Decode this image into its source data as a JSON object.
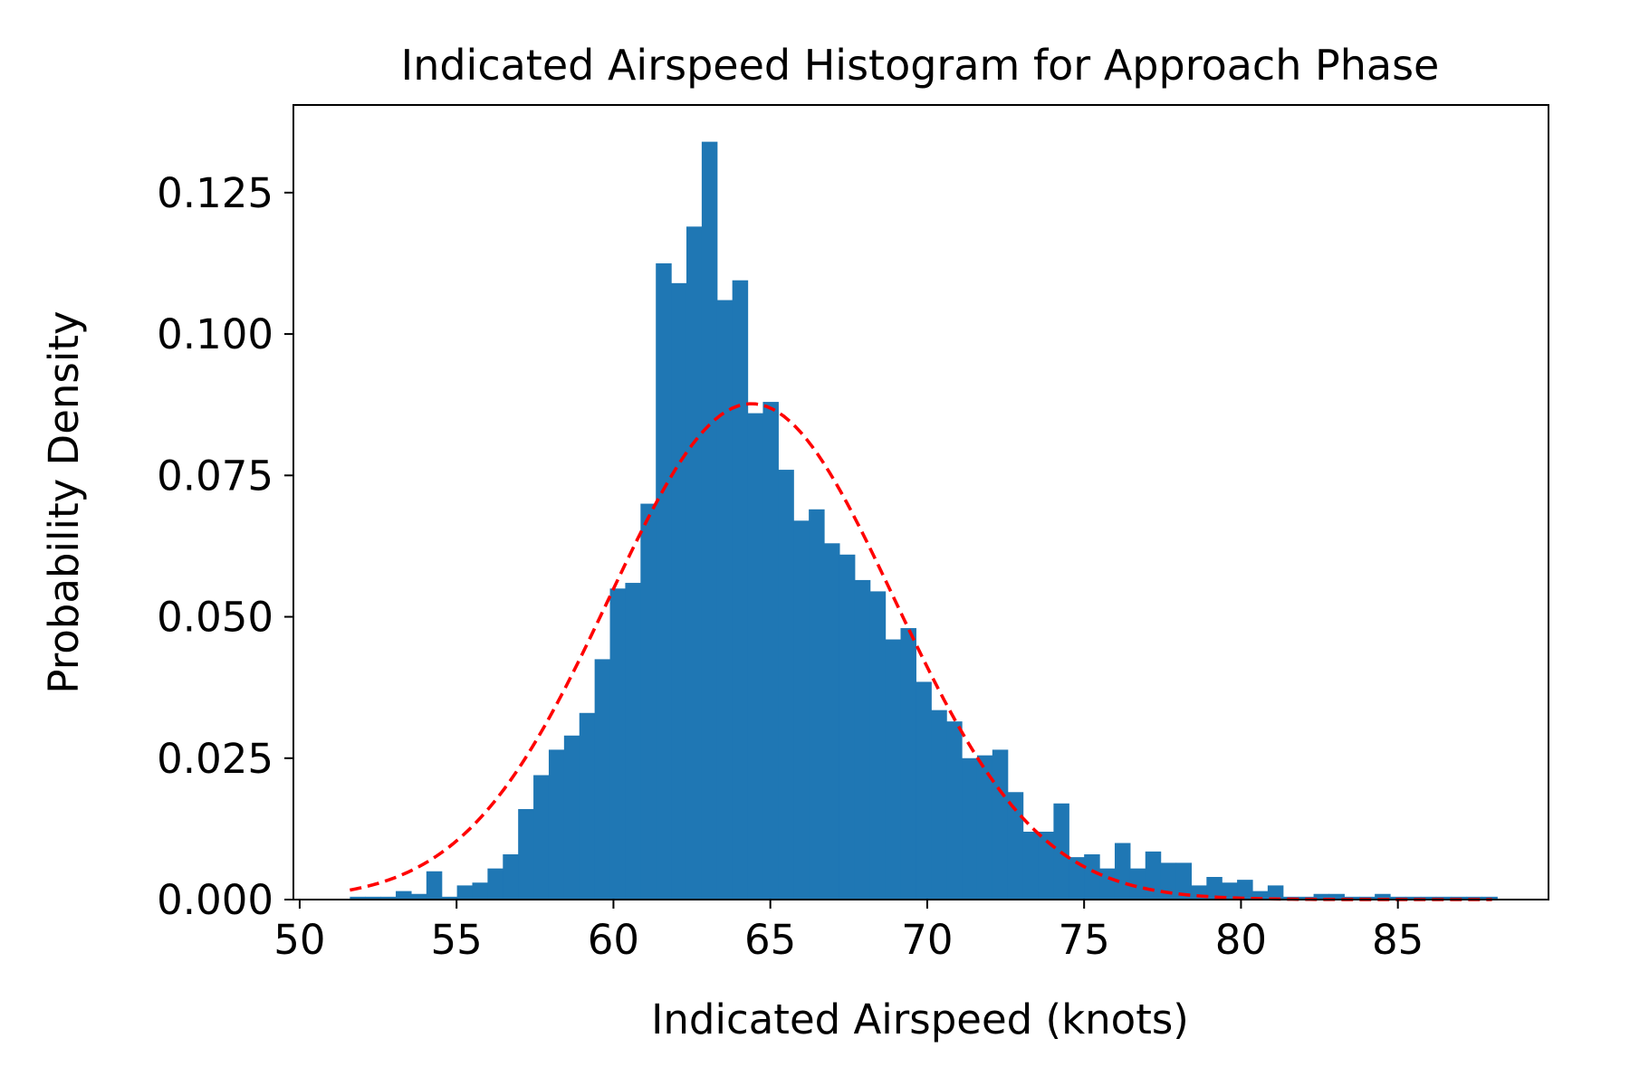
{
  "chart_data": {
    "type": "bar",
    "title": "Indicated Airspeed Histogram for Approach Phase",
    "xlabel": "Indicated Airspeed (knots)",
    "ylabel": "Probability Density",
    "xlim": [
      49.8,
      89.8
    ],
    "ylim": [
      0,
      0.1405
    ],
    "xticks": [
      50,
      55,
      60,
      65,
      70,
      75,
      80,
      85
    ],
    "yticks": [
      0,
      0.025,
      0.05,
      0.075,
      0.1,
      0.125
    ],
    "ytick_labels": [
      "0.000",
      "0.025",
      "0.050",
      "0.075",
      "0.100",
      "0.125"
    ],
    "bar_color": "#1f77b4",
    "fit_color": "#ff0000",
    "grid": false,
    "bins": {
      "start": 51.6,
      "width": 0.4875,
      "densities": [
        0.0005,
        0.0005,
        0.0005,
        0.0015,
        0.001,
        0.005,
        0.0005,
        0.0025,
        0.003,
        0.0055,
        0.008,
        0.016,
        0.022,
        0.0265,
        0.029,
        0.033,
        0.0425,
        0.055,
        0.056,
        0.07,
        0.1125,
        0.109,
        0.119,
        0.134,
        0.106,
        0.1095,
        0.086,
        0.088,
        0.076,
        0.067,
        0.069,
        0.063,
        0.061,
        0.0565,
        0.0545,
        0.046,
        0.048,
        0.0385,
        0.0335,
        0.0315,
        0.025,
        0.0255,
        0.0265,
        0.019,
        0.012,
        0.012,
        0.017,
        0.0075,
        0.008,
        0.0055,
        0.01,
        0.0055,
        0.0085,
        0.0065,
        0.0065,
        0.0025,
        0.004,
        0.003,
        0.0035,
        0.0015,
        0.0025,
        0.0005,
        0.0005,
        0.001,
        0.001,
        0.0005,
        0.0005,
        0.001,
        0.0005,
        0.0005,
        0.0005,
        0.0005,
        0.0005,
        0.0005,
        0.0005
      ]
    },
    "fit": {
      "kind": "normal",
      "mean": 64.4,
      "std": 4.55,
      "x_range": [
        51.6,
        88.0
      ],
      "style": "dashed"
    }
  }
}
